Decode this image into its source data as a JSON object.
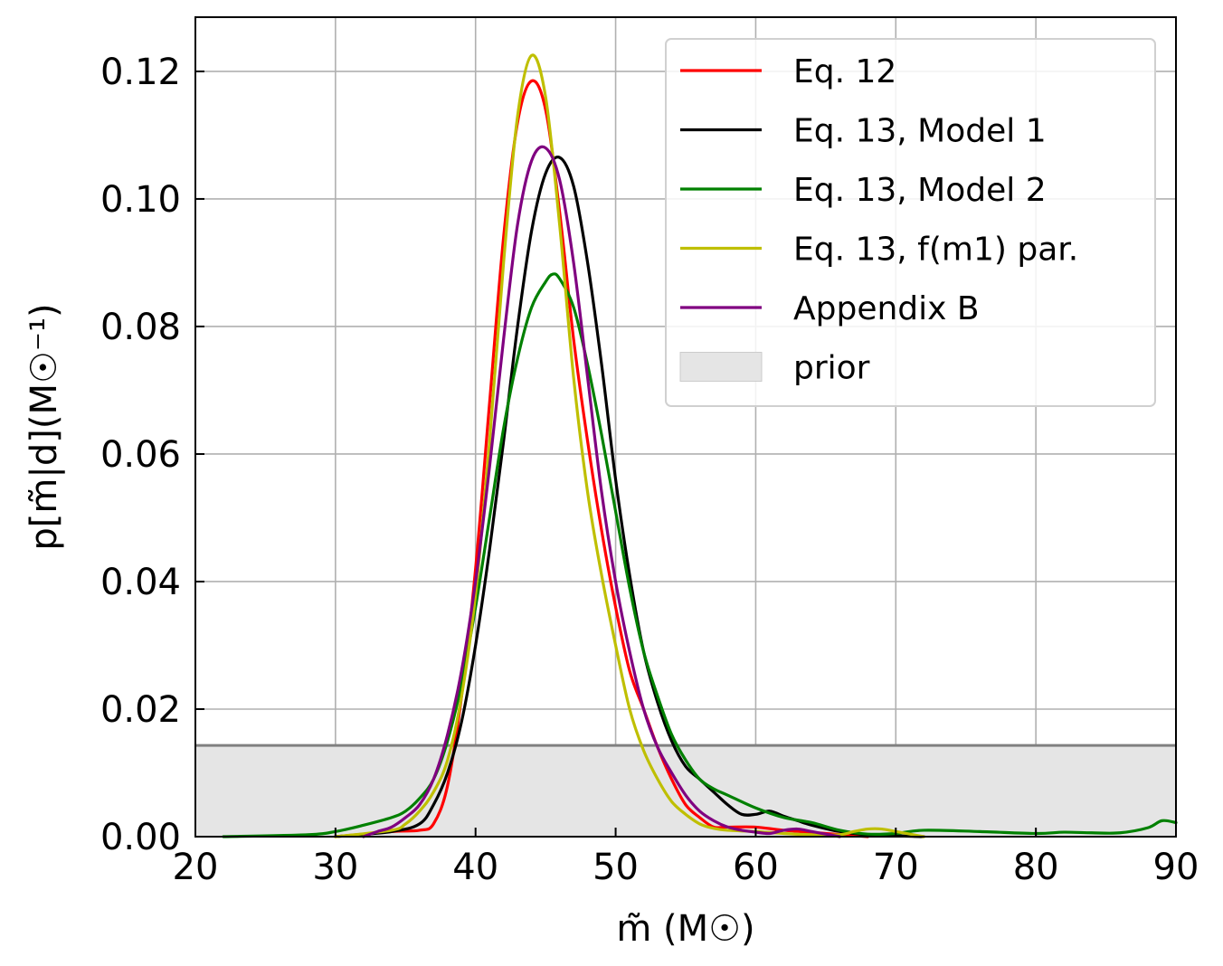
{
  "chart_data": {
    "type": "line",
    "xlabel": "m̃ (M☉)",
    "ylabel": "p[m̃|d](M☉⁻¹)",
    "xlim": [
      20,
      90
    ],
    "ylim": [
      0,
      0.1285
    ],
    "xticks": [
      20,
      30,
      40,
      50,
      60,
      70,
      80,
      90
    ],
    "yticks": [
      0.0,
      0.02,
      0.04,
      0.06,
      0.08,
      0.1,
      0.12
    ],
    "xtick_labels": [
      "20",
      "30",
      "40",
      "50",
      "60",
      "70",
      "80",
      "90"
    ],
    "ytick_labels": [
      "0.00",
      "0.02",
      "0.04",
      "0.06",
      "0.08",
      "0.10",
      "0.12"
    ],
    "grid": true,
    "legend_position": "top-right",
    "series": [
      {
        "name": "Eq. 12",
        "color": "#ff0000",
        "x": [
          30,
          34,
          36,
          37,
          38,
          39,
          40,
          41,
          42,
          43,
          44,
          45,
          46,
          47,
          48,
          49,
          50,
          51,
          52,
          53,
          54,
          55,
          56,
          57,
          58,
          60,
          62,
          65,
          68
        ],
        "y": [
          0.0,
          0.0008,
          0.001,
          0.002,
          0.008,
          0.022,
          0.042,
          0.068,
          0.094,
          0.112,
          0.1185,
          0.114,
          0.098,
          0.078,
          0.062,
          0.048,
          0.036,
          0.026,
          0.02,
          0.014,
          0.009,
          0.005,
          0.003,
          0.0015,
          0.0015,
          0.0015,
          0.001,
          0.0005,
          0.0
        ]
      },
      {
        "name": "Eq. 13, Model 1",
        "color": "#000000",
        "x": [
          30,
          34,
          36,
          37,
          38,
          39,
          40,
          41,
          42,
          43,
          44,
          45,
          46,
          47,
          48,
          49,
          50,
          51,
          52,
          53,
          54,
          55,
          56,
          57,
          58,
          59,
          60,
          61,
          62,
          63,
          64,
          66,
          68,
          72
        ],
        "y": [
          0.0,
          0.0008,
          0.002,
          0.005,
          0.01,
          0.018,
          0.03,
          0.045,
          0.062,
          0.08,
          0.095,
          0.104,
          0.1065,
          0.102,
          0.09,
          0.074,
          0.056,
          0.041,
          0.029,
          0.021,
          0.015,
          0.011,
          0.009,
          0.007,
          0.005,
          0.0035,
          0.0035,
          0.004,
          0.0032,
          0.0025,
          0.0018,
          0.0008,
          0.0003,
          0.0
        ]
      },
      {
        "name": "Eq. 13, Model 2",
        "color": "#008000",
        "x": [
          22,
          28,
          30,
          32,
          34,
          35,
          36,
          37,
          38,
          39,
          40,
          41,
          42,
          43,
          44,
          45,
          45.5,
          46,
          47,
          48,
          49,
          50,
          51,
          52,
          53,
          54,
          55,
          56,
          57,
          58,
          60,
          62,
          64,
          66,
          68,
          70,
          72,
          76,
          80,
          82,
          84,
          86,
          88,
          89,
          90
        ],
        "y": [
          0.0,
          0.0003,
          0.0008,
          0.0018,
          0.003,
          0.004,
          0.006,
          0.009,
          0.015,
          0.024,
          0.036,
          0.05,
          0.064,
          0.075,
          0.083,
          0.087,
          0.0882,
          0.0875,
          0.083,
          0.074,
          0.063,
          0.051,
          0.039,
          0.029,
          0.022,
          0.016,
          0.012,
          0.009,
          0.0075,
          0.0065,
          0.0045,
          0.003,
          0.0022,
          0.001,
          0.0004,
          0.0005,
          0.001,
          0.0008,
          0.0005,
          0.0007,
          0.0006,
          0.0006,
          0.0014,
          0.0025,
          0.0022
        ]
      },
      {
        "name": "Eq. 13, f(m1) par.",
        "color": "#bfbf00",
        "x": [
          30,
          34,
          35,
          36,
          37,
          38,
          39,
          40,
          41,
          42,
          43,
          44,
          45,
          46,
          47,
          48,
          49,
          50,
          51,
          52,
          53,
          54,
          55,
          56,
          57,
          58,
          60,
          62,
          64,
          66,
          67,
          68,
          69,
          70,
          72
        ],
        "y": [
          0.0,
          0.001,
          0.002,
          0.004,
          0.007,
          0.012,
          0.022,
          0.038,
          0.062,
          0.09,
          0.113,
          0.1225,
          0.116,
          0.096,
          0.072,
          0.054,
          0.041,
          0.03,
          0.02,
          0.0135,
          0.009,
          0.0055,
          0.0035,
          0.002,
          0.0013,
          0.001,
          0.0008,
          0.0005,
          0.0003,
          0.0003,
          0.0008,
          0.0012,
          0.0012,
          0.0008,
          0.0
        ]
      },
      {
        "name": "Appendix B",
        "color": "#800080",
        "x": [
          32,
          33,
          34,
          35,
          36,
          37,
          38,
          39,
          40,
          41,
          42,
          43,
          44,
          45,
          46,
          47,
          48,
          49,
          50,
          51,
          52,
          53,
          54,
          55,
          56,
          57,
          58,
          59,
          60,
          61,
          62,
          63,
          64,
          65,
          66
        ],
        "y": [
          0.0,
          0.0008,
          0.0015,
          0.003,
          0.005,
          0.009,
          0.016,
          0.026,
          0.04,
          0.058,
          0.078,
          0.096,
          0.106,
          0.108,
          0.103,
          0.09,
          0.072,
          0.054,
          0.04,
          0.029,
          0.02,
          0.014,
          0.01,
          0.0065,
          0.004,
          0.0025,
          0.0015,
          0.001,
          0.0007,
          0.0005,
          0.001,
          0.0012,
          0.0008,
          0.0004,
          0.0
        ]
      }
    ],
    "prior": {
      "name": "prior",
      "value": 0.0143,
      "x_range": [
        20,
        90
      ],
      "fill_color": "#e5e5e5",
      "line_color": "#808080"
    }
  }
}
